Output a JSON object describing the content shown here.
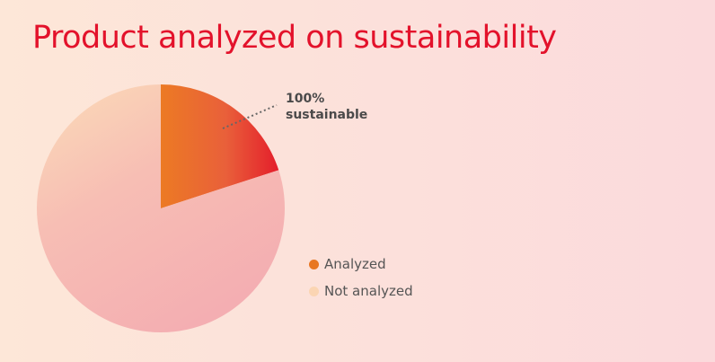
{
  "chart_data": {
    "type": "pie",
    "title": "Product analyzed on sustainability",
    "slices": [
      {
        "label": "Analyzed",
        "value": 20,
        "color": "#e87722"
      },
      {
        "label": "Not analyzed",
        "value": 80,
        "color": "#fbd5b3"
      }
    ],
    "annotation": {
      "line1": "100%",
      "line2": "sustainable"
    },
    "legend_position": "right"
  }
}
